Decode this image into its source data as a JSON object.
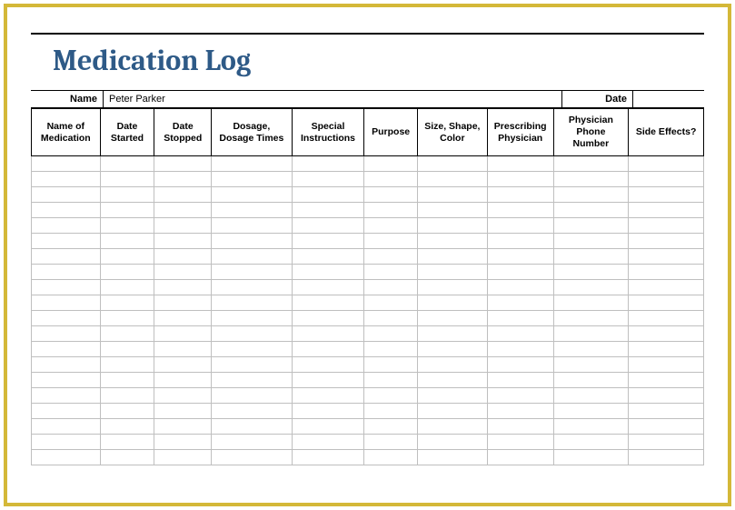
{
  "title": "Medication Log",
  "info": {
    "name_label": "Name",
    "name_value": "Peter Parker",
    "date_label": "Date",
    "date_value": ""
  },
  "table": {
    "columns": [
      "Name of Medication",
      "Date Started",
      "Date Stopped",
      "Dosage, Dosage Times",
      "Special Instructions",
      "Purpose",
      "Size, Shape, Color",
      "Prescribing Physician",
      "Physician Phone Number",
      "Side Effects?"
    ],
    "col_widths_pct": [
      10.6,
      8.4,
      8.8,
      12.4,
      11.2,
      8.2,
      10.8,
      10.2,
      11.6,
      11.6
    ],
    "rows": [
      [
        "",
        "",
        "",
        "",
        "",
        "",
        "",
        "",
        "",
        ""
      ],
      [
        "",
        "",
        "",
        "",
        "",
        "",
        "",
        "",
        "",
        ""
      ],
      [
        "",
        "",
        "",
        "",
        "",
        "",
        "",
        "",
        "",
        ""
      ],
      [
        "",
        "",
        "",
        "",
        "",
        "",
        "",
        "",
        "",
        ""
      ],
      [
        "",
        "",
        "",
        "",
        "",
        "",
        "",
        "",
        "",
        ""
      ],
      [
        "",
        "",
        "",
        "",
        "",
        "",
        "",
        "",
        "",
        ""
      ],
      [
        "",
        "",
        "",
        "",
        "",
        "",
        "",
        "",
        "",
        ""
      ],
      [
        "",
        "",
        "",
        "",
        "",
        "",
        "",
        "",
        "",
        ""
      ],
      [
        "",
        "",
        "",
        "",
        "",
        "",
        "",
        "",
        "",
        ""
      ],
      [
        "",
        "",
        "",
        "",
        "",
        "",
        "",
        "",
        "",
        ""
      ],
      [
        "",
        "",
        "",
        "",
        "",
        "",
        "",
        "",
        "",
        ""
      ],
      [
        "",
        "",
        "",
        "",
        "",
        "",
        "",
        "",
        "",
        ""
      ],
      [
        "",
        "",
        "",
        "",
        "",
        "",
        "",
        "",
        "",
        ""
      ],
      [
        "",
        "",
        "",
        "",
        "",
        "",
        "",
        "",
        "",
        ""
      ],
      [
        "",
        "",
        "",
        "",
        "",
        "",
        "",
        "",
        "",
        ""
      ],
      [
        "",
        "",
        "",
        "",
        "",
        "",
        "",
        "",
        "",
        ""
      ],
      [
        "",
        "",
        "",
        "",
        "",
        "",
        "",
        "",
        "",
        ""
      ],
      [
        "",
        "",
        "",
        "",
        "",
        "",
        "",
        "",
        "",
        ""
      ],
      [
        "",
        "",
        "",
        "",
        "",
        "",
        "",
        "",
        "",
        ""
      ],
      [
        "",
        "",
        "",
        "",
        "",
        "",
        "",
        "",
        "",
        ""
      ]
    ]
  },
  "colors": {
    "frame_border": "#d4b838",
    "title_color": "#2e5a87",
    "header_border": "#000000",
    "grid_border": "#bfbfbf",
    "background": "#ffffff"
  },
  "typography": {
    "title_font": "Cambria, Georgia, serif",
    "title_size_pt": 24,
    "body_font": "Arial, sans-serif",
    "header_size_pt": 8,
    "header_weight": "bold"
  }
}
